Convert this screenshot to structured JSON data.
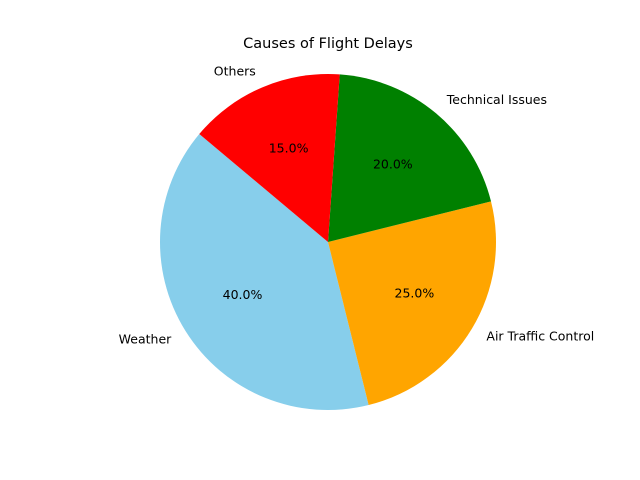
{
  "chart_data": {
    "type": "pie",
    "title": "Causes of Flight Delays",
    "categories": [
      "Weather",
      "Air Traffic Control",
      "Technical Issues",
      "Others"
    ],
    "values": [
      40,
      25,
      20,
      15
    ],
    "percent_labels": [
      "40.0%",
      "25.0%",
      "20.0%",
      "15.0%"
    ],
    "colors": [
      "#87ceeb",
      "#ffa500",
      "#008000",
      "#ff0000"
    ],
    "start_angle_deg": 140,
    "direction": "counterclockwise",
    "legend": "none"
  }
}
